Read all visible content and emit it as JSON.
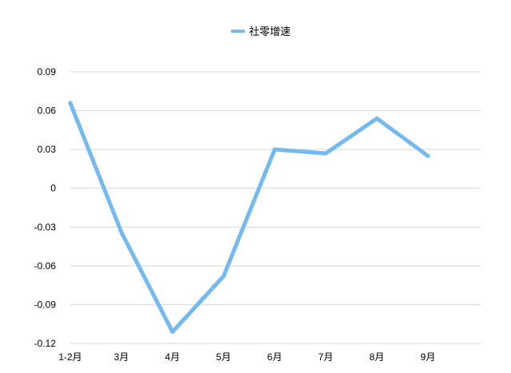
{
  "chart_data": {
    "type": "line",
    "title": "",
    "xlabel": "",
    "ylabel": "",
    "categories": [
      "1-2月",
      "3月",
      "4月",
      "5月",
      "6月",
      "7月",
      "8月",
      "9月"
    ],
    "series": [
      {
        "name": "社零增速",
        "color": "#74BAF0",
        "values": [
          0.066,
          -0.034,
          -0.111,
          -0.068,
          0.03,
          0.027,
          0.054,
          0.025
        ]
      }
    ],
    "ylim": [
      -0.12,
      0.09
    ],
    "yticks": [
      "0.09",
      "0.06",
      "0.03",
      "0",
      "-0.03",
      "-0.06",
      "-0.09",
      "-0.12"
    ],
    "ytick_values": [
      0.09,
      0.06,
      0.03,
      0,
      -0.03,
      -0.06,
      -0.09,
      -0.12
    ],
    "grid": true,
    "legend_position": "top-center"
  }
}
